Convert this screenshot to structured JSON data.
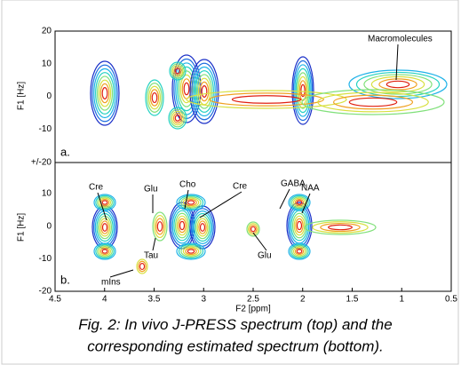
{
  "figure": {
    "top_panel": {
      "yticks": [
        "20",
        "10",
        "0",
        "-10"
      ],
      "y_label": "F1 [Hz]",
      "panel_label": "a.",
      "annotation": "Macromolecules"
    },
    "shared_tick": "+/-20",
    "bottom_panel": {
      "yticks": [
        "10",
        "0",
        "-10",
        "-20"
      ],
      "y_label": "F1 [Hz]",
      "panel_label": "b.",
      "annotations": [
        "Cre",
        "Glu",
        "Cho",
        "Cre",
        "GABA",
        "NAA",
        "Tau",
        "Glu",
        "mIns"
      ]
    },
    "xticks": [
      "4.5",
      "4",
      "3.5",
      "3",
      "2.5",
      "2",
      "1.5",
      "1",
      "0.5"
    ],
    "x_label": "F2 [ppm]",
    "caption": {
      "prefix": "Fig. ",
      "number": "2",
      "line1": ": In vivo J-PRESS spectrum (top) and the",
      "line2": "corresponding estimated spectrum (bottom)."
    }
  }
}
